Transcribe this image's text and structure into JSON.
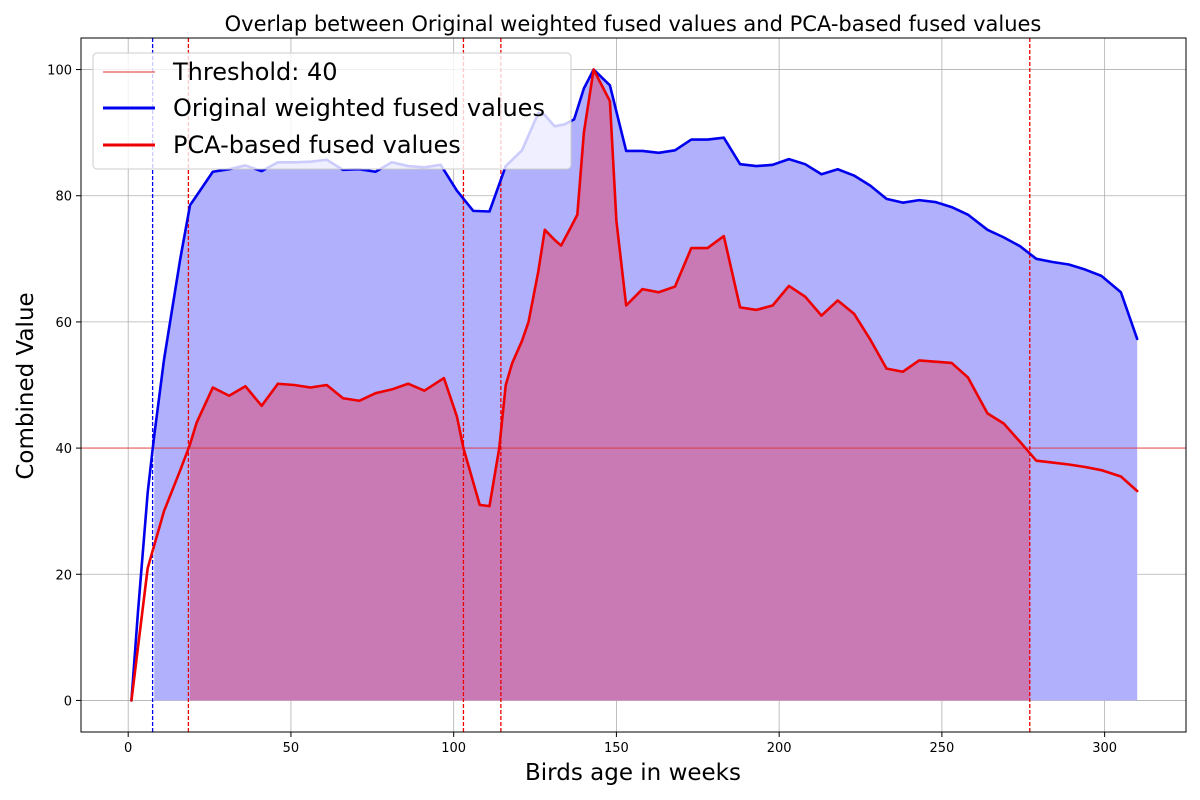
{
  "chart_data": {
    "type": "line",
    "title": "Overlap between Original weighted fused values and PCA-based fused values",
    "xlabel": "Birds age in weeks",
    "ylabel": "Combined Value",
    "xlim": [
      -14.5,
      325
    ],
    "ylim": [
      -5,
      105
    ],
    "xticks": [
      0,
      50,
      100,
      150,
      200,
      250,
      300
    ],
    "yticks": [
      0,
      20,
      40,
      60,
      80,
      100
    ],
    "grid": true,
    "legend_position": "top-left",
    "threshold": {
      "label": "Threshold: 40",
      "value": 40,
      "color": "#e03030"
    },
    "series": [
      {
        "name": "Original weighted fused values",
        "color": "#0000ee",
        "fill_color": "#b0b0fc",
        "fill_range": [
          8,
          310
        ],
        "x": [
          1,
          3,
          6,
          8,
          11,
          16,
          19,
          21,
          26,
          31,
          36,
          41,
          46,
          51,
          56,
          61,
          66,
          71,
          76,
          81,
          86,
          91,
          96,
          101,
          106,
          111,
          116,
          121,
          126,
          128,
          131,
          134,
          137,
          140,
          143,
          148,
          153,
          158,
          163,
          168,
          173,
          178,
          183,
          188,
          193,
          198,
          203,
          208,
          213,
          218,
          223,
          228,
          233,
          238,
          243,
          248,
          253,
          258,
          264,
          269,
          274,
          279,
          284,
          289,
          294,
          299,
          305,
          310
        ],
        "values": [
          0,
          14,
          33,
          42,
          54,
          70,
          78.5,
          80,
          83.8,
          84.2,
          84.8,
          83.9,
          85.3,
          85.3,
          85.4,
          85.7,
          84.1,
          84.2,
          83.8,
          85.3,
          84.7,
          84.5,
          84.9,
          80.8,
          77.6,
          77.5,
          84.7,
          87.2,
          93.1,
          92.8,
          91.0,
          91.3,
          92.1,
          97,
          100,
          97.5,
          87.1,
          87.1,
          86.8,
          87.2,
          88.9,
          88.9,
          89.2,
          85.0,
          84.7,
          84.9,
          85.8,
          85.0,
          83.4,
          84.2,
          83.2,
          81.6,
          79.5,
          78.9,
          79.3,
          79.0,
          78.2,
          77.0,
          74.6,
          73.4,
          72.0,
          70.0,
          69.5,
          69.1,
          68.3,
          67.3,
          64.7,
          57.3
        ]
      },
      {
        "name": "PCA-based fused values",
        "color": "#ee0000",
        "fill_color": "#c97ab5",
        "fill_range": [
          19,
          277
        ],
        "x": [
          1,
          6,
          11,
          16,
          19,
          21,
          26,
          31,
          36,
          41,
          46,
          51,
          56,
          61,
          66,
          71,
          76,
          81,
          86,
          91,
          97,
          101,
          103,
          108,
          111,
          114,
          116,
          118,
          121,
          123,
          126,
          128,
          131,
          133,
          136,
          138,
          140,
          143,
          146,
          148,
          150,
          153,
          158,
          163,
          168,
          173,
          178,
          183,
          188,
          193,
          198,
          203,
          208,
          213,
          218,
          223,
          228,
          233,
          238,
          243,
          248,
          253,
          258,
          264,
          269,
          274,
          279,
          284,
          289,
          294,
          299,
          305,
          310
        ],
        "values": [
          0,
          21,
          30,
          36.5,
          40.6,
          44.0,
          49.6,
          48.3,
          49.8,
          46.7,
          50.2,
          50.0,
          49.6,
          50.0,
          47.9,
          47.5,
          48.7,
          49.3,
          50.2,
          49.1,
          51.1,
          45.0,
          40,
          31.0,
          30.8,
          40.0,
          50.0,
          53.5,
          57.0,
          60.0,
          68.0,
          74.6,
          73.0,
          72.1,
          75.0,
          77.0,
          90.0,
          100,
          97.0,
          95.0,
          76.0,
          62.6,
          65.2,
          64.7,
          65.6,
          71.7,
          71.7,
          73.6,
          62.3,
          61.9,
          62.6,
          65.7,
          64.0,
          61.0,
          63.4,
          61.3,
          57.2,
          52.6,
          52.1,
          53.9,
          53.7,
          53.5,
          51.2,
          45.5,
          43.9,
          41.0,
          38.0,
          37.7,
          37.4,
          37.0,
          36.5,
          35.5,
          33.2
        ]
      }
    ],
    "vlines": [
      {
        "x": 7.5,
        "color": "#0000ee"
      },
      {
        "x": 18.5,
        "color": "#ee0000"
      },
      {
        "x": 103,
        "color": "#ee0000"
      },
      {
        "x": 114.5,
        "color": "#ee0000"
      },
      {
        "x": 277,
        "color": "#ee0000"
      }
    ]
  }
}
